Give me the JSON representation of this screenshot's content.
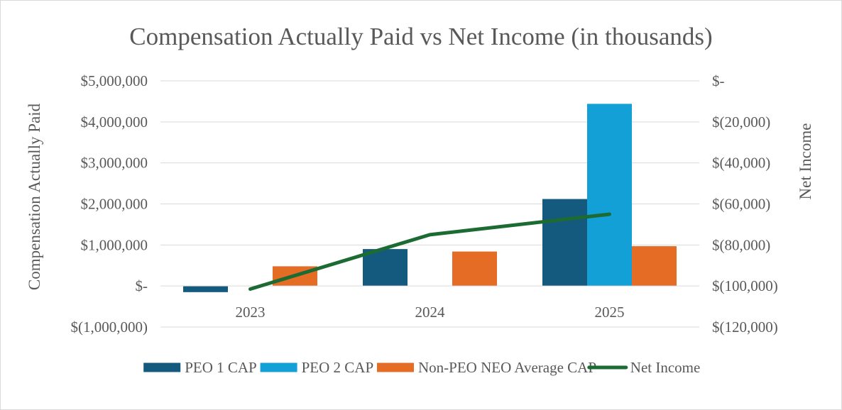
{
  "chart_data": {
    "type": "bar",
    "title": "Compensation Actually Paid vs Net Income (in thousands)",
    "categories": [
      "2023",
      "2024",
      "2025"
    ],
    "ylabel": "Compensation Actually Paid",
    "y2label": "Net Income",
    "ylim": [
      -1000000,
      5000000
    ],
    "y2lim": [
      -120000,
      0
    ],
    "yticks": [
      {
        "value": 5000000,
        "label": "$5,000,000"
      },
      {
        "value": 4000000,
        "label": "$4,000,000"
      },
      {
        "value": 3000000,
        "label": "$3,000,000"
      },
      {
        "value": 2000000,
        "label": "$2,000,000"
      },
      {
        "value": 1000000,
        "label": "$1,000,000"
      },
      {
        "value": 0,
        "label": "$-"
      },
      {
        "value": -1000000,
        "label": "$(1,000,000)"
      }
    ],
    "y2ticks": [
      {
        "value": 0,
        "label": "$-"
      },
      {
        "value": -20000,
        "label": "$(20,000)"
      },
      {
        "value": -40000,
        "label": "$(40,000)"
      },
      {
        "value": -60000,
        "label": "$(60,000)"
      },
      {
        "value": -80000,
        "label": "$(80,000)"
      },
      {
        "value": -100000,
        "label": "$(100,000)"
      },
      {
        "value": -120000,
        "label": "$(120,000)"
      }
    ],
    "series": [
      {
        "name": "PEO 1 CAP",
        "type": "bar",
        "color": "#145a7e",
        "values": [
          -150000,
          900000,
          2120000
        ]
      },
      {
        "name": "PEO 2 CAP",
        "type": "bar",
        "color": "#13a0d7",
        "values": [
          null,
          null,
          4440000
        ]
      },
      {
        "name": "Non-PEO NEO Average CAP",
        "type": "bar",
        "color": "#e46c25",
        "values": [
          480000,
          840000,
          970000
        ]
      },
      {
        "name": "Net Income",
        "type": "line",
        "axis": "secondary",
        "color": "#1c6b33",
        "values": [
          -101500,
          -75000,
          -65000
        ]
      }
    ],
    "legend_position": "bottom",
    "grid": true
  }
}
